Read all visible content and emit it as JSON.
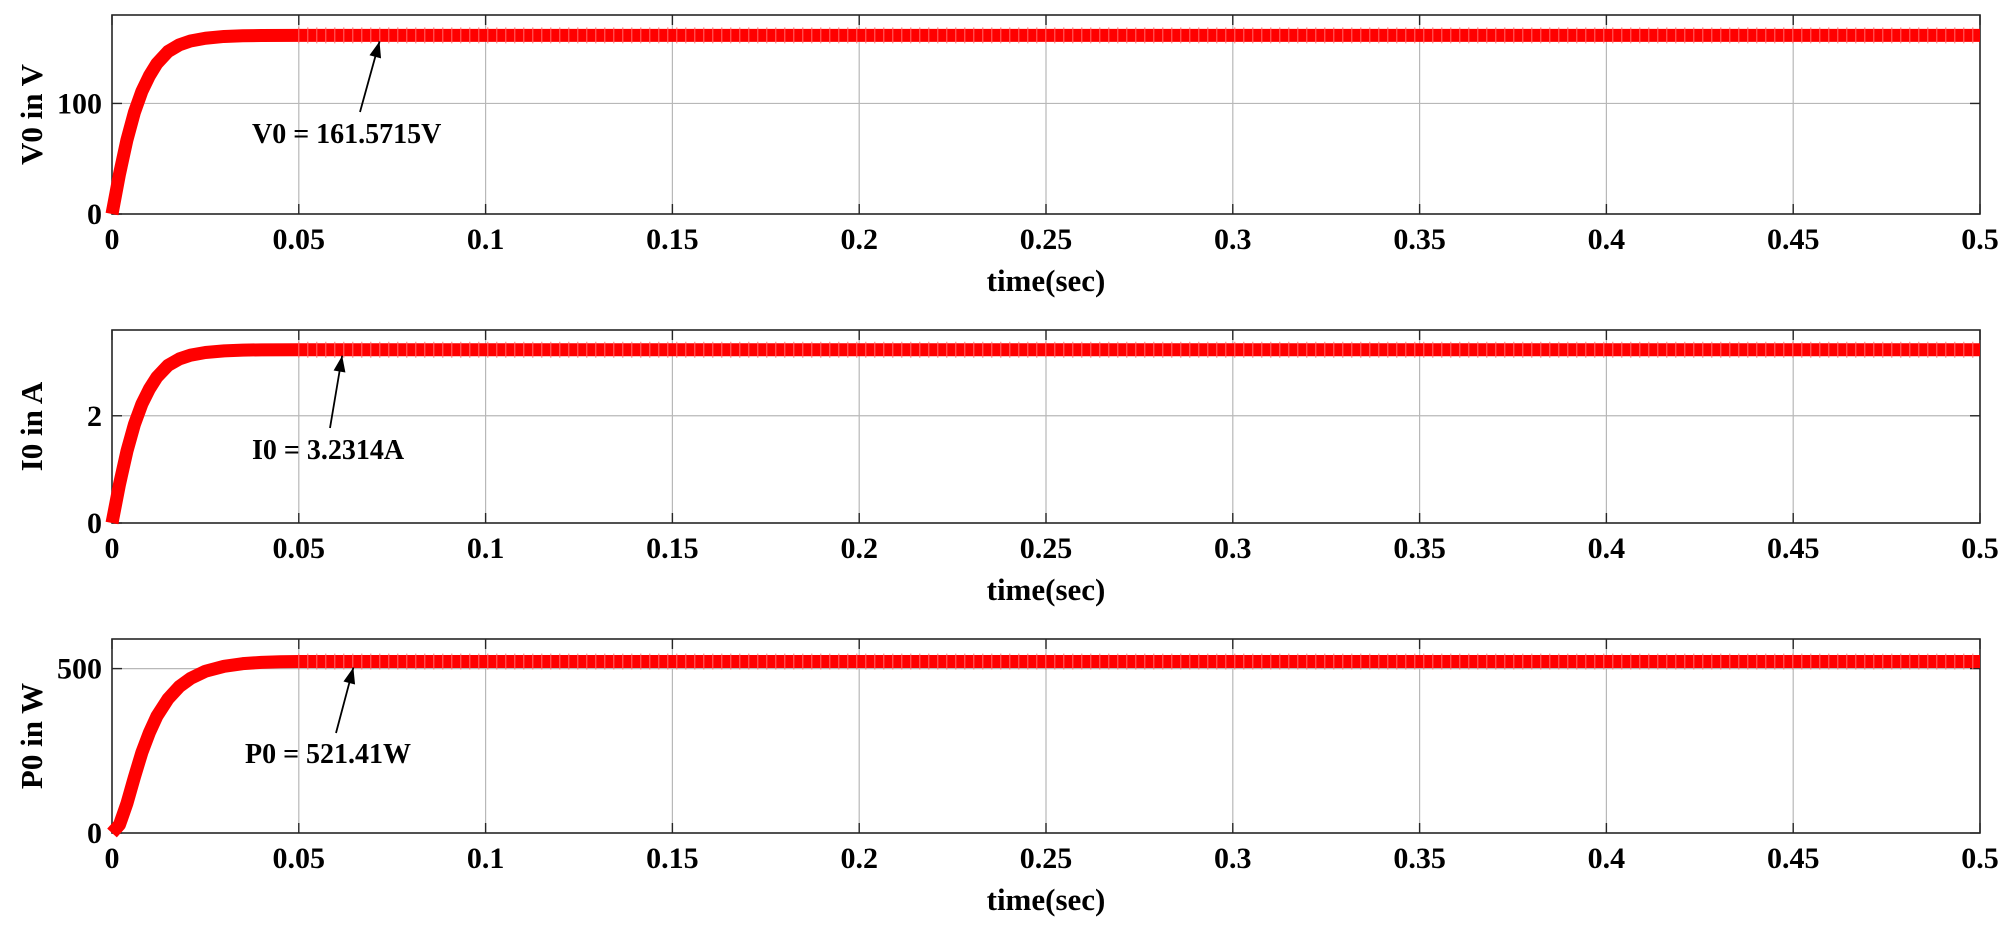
{
  "chart_data": [
    {
      "type": "line",
      "xlabel": "time(sec)",
      "ylabel": "V0 in V",
      "xlim": [
        0,
        0.5
      ],
      "ylim": [
        0,
        180
      ],
      "xticks": [
        0,
        0.05,
        0.1,
        0.15,
        0.2,
        0.25,
        0.3,
        0.35,
        0.4,
        0.45,
        0.5
      ],
      "xtick_labels": [
        "0",
        "0.05",
        "0.1",
        "0.15",
        "0.2",
        "0.25",
        "0.3",
        "0.35",
        "0.4",
        "0.45",
        "0.5"
      ],
      "yticks": [
        0,
        100
      ],
      "ytick_labels": [
        "0",
        "100"
      ],
      "grid": true,
      "series": [
        {
          "color": "#ff0000",
          "x": [
            0,
            0.002,
            0.004,
            0.006,
            0.008,
            0.01,
            0.012,
            0.015,
            0.018,
            0.021,
            0.025,
            0.03,
            0.035,
            0.04,
            0.05,
            0.1,
            0.2,
            0.3,
            0.4,
            0.5
          ],
          "y": [
            0,
            36,
            67,
            92,
            111,
            125,
            136,
            147,
            153,
            156.5,
            159,
            160.6,
            161.2,
            161.5,
            161.57,
            161.57,
            161.57,
            161.57,
            161.57,
            161.57
          ]
        }
      ],
      "annotation": {
        "text": "V0 = 161.5715V",
        "x": 0.07,
        "y": 161.57
      }
    },
    {
      "type": "line",
      "xlabel": "time(sec)",
      "ylabel": "I0 in A",
      "xlim": [
        0,
        0.5
      ],
      "ylim": [
        0,
        3.6
      ],
      "xticks": [
        0,
        0.05,
        0.1,
        0.15,
        0.2,
        0.25,
        0.3,
        0.35,
        0.4,
        0.45,
        0.5
      ],
      "xtick_labels": [
        "0",
        "0.05",
        "0.1",
        "0.15",
        "0.2",
        "0.25",
        "0.3",
        "0.35",
        "0.4",
        "0.45",
        "0.5"
      ],
      "yticks": [
        0,
        2
      ],
      "ytick_labels": [
        "0",
        "2"
      ],
      "grid": true,
      "series": [
        {
          "color": "#ff0000",
          "x": [
            0,
            0.002,
            0.004,
            0.006,
            0.008,
            0.01,
            0.012,
            0.015,
            0.018,
            0.021,
            0.025,
            0.03,
            0.035,
            0.04,
            0.05,
            0.1,
            0.2,
            0.3,
            0.4,
            0.5
          ],
          "y": [
            0,
            0.72,
            1.34,
            1.84,
            2.22,
            2.5,
            2.72,
            2.94,
            3.06,
            3.13,
            3.18,
            3.21,
            3.225,
            3.23,
            3.2314,
            3.2314,
            3.2314,
            3.2314,
            3.2314,
            3.2314
          ]
        }
      ],
      "annotation": {
        "text": "I0 = 3.2314A",
        "x": 0.06,
        "y": 3.2314
      }
    },
    {
      "type": "line",
      "xlabel": "time(sec)",
      "ylabel": "P0 in W",
      "xlim": [
        0,
        0.5
      ],
      "ylim": [
        0,
        590
      ],
      "xticks": [
        0,
        0.05,
        0.1,
        0.15,
        0.2,
        0.25,
        0.3,
        0.35,
        0.4,
        0.45,
        0.5
      ],
      "xtick_labels": [
        "0",
        "0.05",
        "0.1",
        "0.15",
        "0.2",
        "0.25",
        "0.3",
        "0.35",
        "0.4",
        "0.45",
        "0.5"
      ],
      "yticks": [
        0,
        500
      ],
      "ytick_labels": [
        "0",
        "500"
      ],
      "grid": true,
      "series": [
        {
          "color": "#ff0000",
          "x": [
            0,
            0.002,
            0.004,
            0.006,
            0.008,
            0.01,
            0.012,
            0.015,
            0.018,
            0.021,
            0.025,
            0.03,
            0.035,
            0.04,
            0.045,
            0.05,
            0.1,
            0.2,
            0.3,
            0.4,
            0.5
          ],
          "y": [
            0,
            25,
            90,
            170,
            245,
            305,
            355,
            408,
            445,
            470,
            492,
            507,
            515,
            519,
            520.8,
            521.41,
            521.41,
            521.41,
            521.41,
            521.41,
            521.41
          ]
        }
      ],
      "annotation": {
        "text": "P0 = 521.41W",
        "x": 0.063,
        "y": 521.41
      }
    }
  ]
}
